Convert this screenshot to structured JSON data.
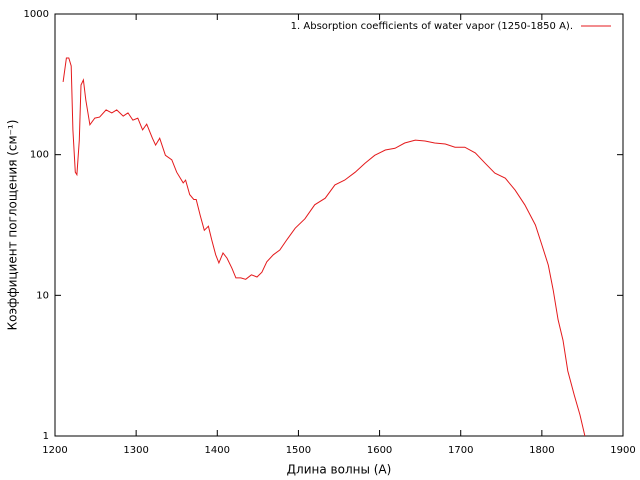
{
  "chart_data": {
    "type": "line",
    "xlabel": "Длина волны (А)",
    "ylabel": "Коэффициент поглощения (см⁻¹)",
    "xlim": [
      1200,
      1900
    ],
    "xticks": [
      1200,
      1300,
      1400,
      1500,
      1600,
      1700,
      1800,
      1900
    ],
    "ylim": [
      1,
      1000
    ],
    "yticks": [
      1,
      10,
      100,
      1000
    ],
    "ylog": true,
    "legend": "top right",
    "x": [
      1210,
      1214,
      1217,
      1220,
      1222,
      1225,
      1227,
      1230,
      1232,
      1235,
      1238,
      1243,
      1249,
      1255,
      1263,
      1270,
      1276,
      1284,
      1290,
      1296,
      1302,
      1308,
      1313,
      1320,
      1324,
      1329,
      1336,
      1344,
      1350,
      1358,
      1361,
      1366,
      1371,
      1374,
      1379,
      1384,
      1389,
      1393,
      1398,
      1402,
      1407,
      1412,
      1418,
      1423,
      1429,
      1435,
      1442,
      1449,
      1455,
      1461,
      1469,
      1477,
      1486,
      1496,
      1508,
      1520,
      1533,
      1545,
      1557,
      1570,
      1582,
      1594,
      1607,
      1619,
      1631,
      1644,
      1656,
      1668,
      1681,
      1693,
      1705,
      1718,
      1730,
      1742,
      1755,
      1767,
      1779,
      1792,
      1800,
      1808,
      1814,
      1820,
      1826,
      1832,
      1840,
      1847,
      1853
    ],
    "series": [
      {
        "name": "1. Absorption coefficients of water vapor (1250-1850 A).",
        "color": "#e41a1c",
        "values": [
          329,
          487,
          487,
          427,
          150,
          75,
          72,
          127,
          313,
          340,
          245,
          163,
          182,
          185,
          208,
          198,
          208,
          188,
          198,
          176,
          182,
          150,
          165,
          131,
          117,
          131,
          99,
          92,
          75,
          63,
          66,
          52,
          48,
          48,
          37,
          29,
          31,
          25,
          19.4,
          17,
          20,
          18.4,
          15.6,
          13.3,
          13.3,
          13,
          14,
          13.5,
          14.6,
          17.3,
          19.4,
          21,
          25,
          30,
          35,
          44,
          49,
          61,
          66,
          75,
          87,
          99,
          108,
          111,
          121,
          127,
          125,
          121,
          119,
          113,
          113,
          103,
          87,
          74,
          68,
          56,
          44,
          31.6,
          22.8,
          16.4,
          10.9,
          6.7,
          4.8,
          2.9,
          1.95,
          1.41,
          1.0
        ]
      }
    ]
  }
}
